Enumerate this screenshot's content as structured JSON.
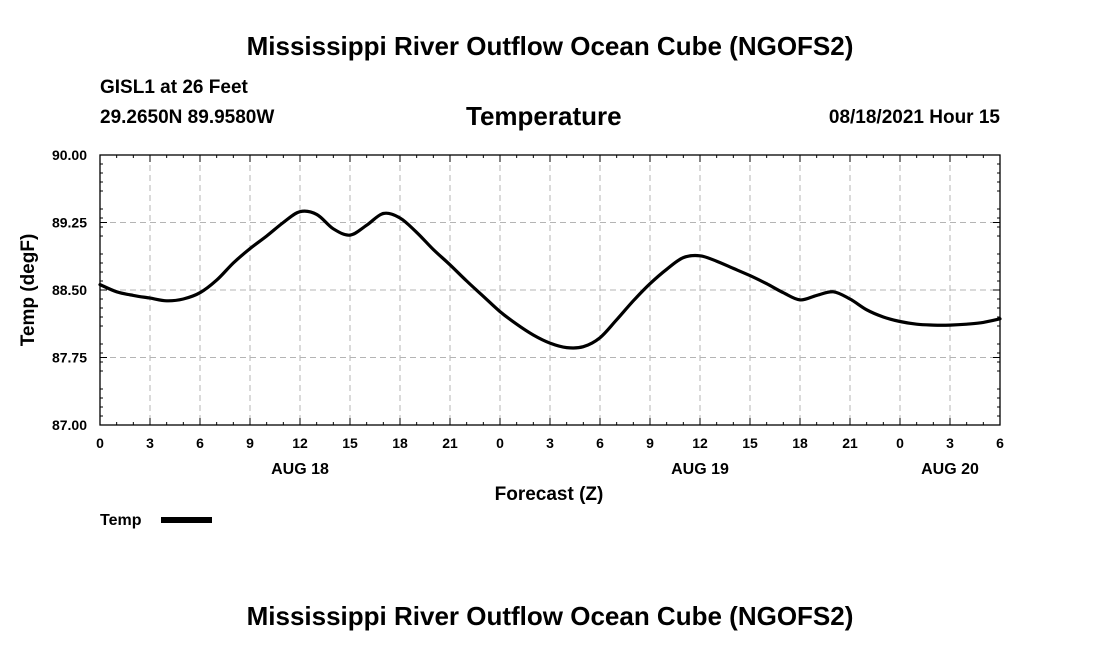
{
  "page": {
    "top_title": "Mississippi River Outflow Ocean Cube (NGOFS2)",
    "bottom_title": "Mississippi River Outflow Ocean Cube (NGOFS2)"
  },
  "header": {
    "station": "GISL1 at 26 Feet",
    "coords": "29.2650N  89.9580W",
    "chart_title": "Temperature",
    "datetime": "08/18/2021 Hour 15"
  },
  "chart_data": {
    "type": "line",
    "title": "Temperature",
    "xlabel": "Forecast (Z)",
    "ylabel": "Temp (degF)",
    "ylim": [
      87.0,
      90.0
    ],
    "xlim": [
      0,
      54
    ],
    "grid": true,
    "y_ticks": [
      "90.00",
      "89.25",
      "88.50",
      "87.75",
      "87.00"
    ],
    "y_tick_values": [
      90.0,
      89.25,
      88.5,
      87.75,
      87.0
    ],
    "x_ticks": [
      "0",
      "3",
      "6",
      "9",
      "12",
      "15",
      "18",
      "21",
      "0",
      "3",
      "6",
      "9",
      "12",
      "15",
      "18",
      "21",
      "0",
      "3",
      "6"
    ],
    "day_labels": [
      {
        "label": "AUG 18",
        "hour": 12
      },
      {
        "label": "AUG 19",
        "hour": 36
      },
      {
        "label": "AUG 20",
        "hour": 51
      }
    ],
    "legend": "Temp",
    "series": [
      {
        "name": "Temp",
        "x": [
          0,
          1,
          2,
          3,
          4,
          5,
          6,
          7,
          8,
          9,
          10,
          11,
          12,
          13,
          14,
          15,
          16,
          17,
          18,
          19,
          20,
          21,
          22,
          23,
          24,
          25,
          26,
          27,
          28,
          29,
          30,
          31,
          32,
          33,
          34,
          35,
          36,
          37,
          38,
          39,
          40,
          41,
          42,
          43,
          44,
          45,
          46,
          47,
          48,
          49,
          50,
          51,
          52,
          53,
          54
        ],
        "values": [
          88.56,
          88.48,
          88.44,
          88.41,
          88.38,
          88.4,
          88.47,
          88.61,
          88.8,
          88.96,
          89.1,
          89.25,
          89.37,
          89.34,
          89.18,
          89.11,
          89.22,
          89.35,
          89.3,
          89.14,
          88.95,
          88.78,
          88.6,
          88.43,
          88.26,
          88.12,
          88.0,
          87.91,
          87.86,
          87.87,
          87.97,
          88.17,
          88.38,
          88.57,
          88.73,
          88.86,
          88.88,
          88.82,
          88.74,
          88.66,
          88.57,
          88.47,
          88.39,
          88.44,
          88.48,
          88.4,
          88.28,
          88.2,
          88.15,
          88.12,
          88.11,
          88.11,
          88.12,
          88.14,
          88.18
        ]
      }
    ]
  }
}
